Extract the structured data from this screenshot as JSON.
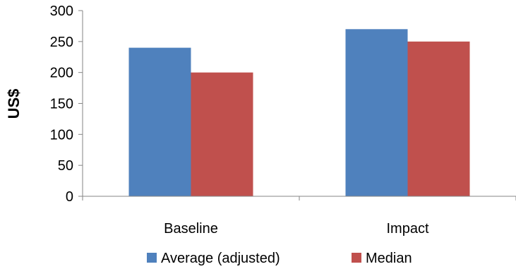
{
  "chart_data": {
    "type": "bar",
    "categories": [
      "Baseline",
      "Impact"
    ],
    "series": [
      {
        "name": "Average (adjusted)",
        "values": [
          240,
          270
        ],
        "color": "#4F81BD"
      },
      {
        "name": "Median",
        "values": [
          200,
          250
        ],
        "color": "#C0504D"
      }
    ],
    "title": "",
    "xlabel": "",
    "ylabel": "US$",
    "ylim": [
      0,
      300
    ],
    "yticks": [
      0,
      50,
      100,
      150,
      200,
      250,
      300
    ],
    "grid": false,
    "legend": "bottom"
  }
}
